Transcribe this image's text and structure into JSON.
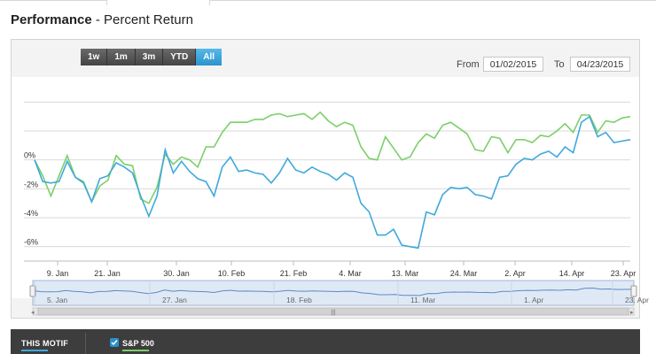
{
  "header": {
    "title_bold": "Performance",
    "title_rest": " - Percent Return"
  },
  "toolbar": {
    "ranges": [
      "1w",
      "1m",
      "3m",
      "YTD",
      "All"
    ],
    "active_range": "All",
    "from_label": "From",
    "from_value": "01/02/2015",
    "to_label": "To",
    "to_value": "04/23/2015"
  },
  "legend": {
    "motif_label": "THIS MOTIF",
    "sp_label": "S&P 500",
    "sp_checked": true
  },
  "colors": {
    "motif": "#3fa9dc",
    "sp500": "#7ccf6a",
    "active_button": "#2a93cc"
  },
  "chart_data": {
    "type": "line",
    "y_ticks": [
      "0%",
      "-2%",
      "-4%",
      "-6%"
    ],
    "x_ticks": [
      "9. Jan",
      "21. Jan",
      "30. Jan",
      "10. Feb",
      "21. Feb",
      "4. Mar",
      "13. Mar",
      "24. Mar",
      "2. Apr",
      "14. Apr",
      "23. Apr"
    ],
    "ylim": [
      -7,
      5
    ],
    "grid": true,
    "series": [
      {
        "name": "THIS MOTIF",
        "values": [
          0,
          -1.5,
          -1.6,
          -1.5,
          -0.1,
          -1.2,
          -1.6,
          -2.9,
          -1.3,
          -1.1,
          -0.2,
          -0.5,
          -0.9,
          -2.5,
          -3.9,
          -2.5,
          0.7,
          -0.9,
          -0.1,
          -0.8,
          -1.3,
          -1.5,
          -2.5,
          -0.5,
          0.2,
          -0.8,
          -0.7,
          -0.9,
          -1.0,
          -1.6,
          -0.9,
          0.1,
          -0.7,
          -0.9,
          -0.5,
          -0.8,
          -1.0,
          -1.4,
          -0.9,
          -1.2,
          -3.0,
          -3.6,
          -5.2,
          -5.2,
          -4.8,
          -5.9,
          -6.0,
          -6.1,
          -3.6,
          -3.8,
          -2.4,
          -1.9,
          -2.0,
          -1.9,
          -2.4,
          -2.5,
          -2.7,
          -1.2,
          -1.1,
          -0.3,
          0.1,
          0.0,
          0.4,
          0.6,
          0.2,
          0.9,
          0.5,
          2.6,
          3.0,
          1.6,
          1.9,
          1.2,
          1.3,
          1.4
        ]
      },
      {
        "name": "S&P 500",
        "values": [
          0,
          -1.1,
          -2.5,
          -1.1,
          0.3,
          -1.2,
          -1.5,
          -2.9,
          -1.8,
          -1.4,
          0.3,
          -0.3,
          -0.4,
          -2.7,
          -3.0,
          -1.9,
          0.4,
          -0.3,
          0.2,
          0.0,
          -0.5,
          0.9,
          0.9,
          1.9,
          2.6,
          2.6,
          2.6,
          2.8,
          2.8,
          3.1,
          3.2,
          3.0,
          3.1,
          3.2,
          2.8,
          3.3,
          2.7,
          2.3,
          2.6,
          2.4,
          0.9,
          0.1,
          0.0,
          1.6,
          0.8,
          0.0,
          0.2,
          1.2,
          1.8,
          1.5,
          2.4,
          2.6,
          2.2,
          1.8,
          0.7,
          0.6,
          1.6,
          1.5,
          0.5,
          1.4,
          1.4,
          1.2,
          1.7,
          1.6,
          2.0,
          2.5,
          1.9,
          3.1,
          3.1,
          1.9,
          2.7,
          2.6,
          2.9,
          3.0
        ]
      }
    ],
    "navigator": {
      "x_ticks": [
        "5. Jan",
        "27. Jan",
        "18. Feb",
        "11. Mar",
        "1. Apr",
        "23. Apr"
      ]
    }
  }
}
